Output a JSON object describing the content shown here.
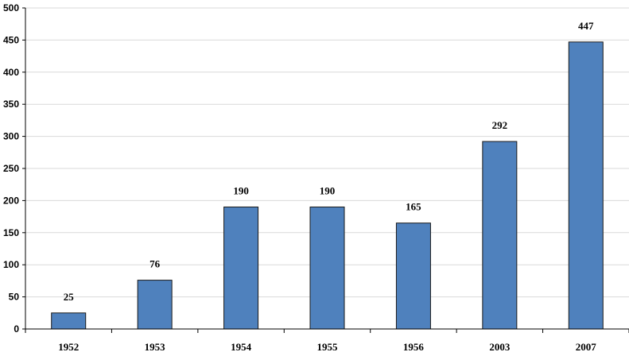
{
  "chart_data": {
    "type": "bar",
    "categories": [
      "1952",
      "1953",
      "1954",
      "1955",
      "1956",
      "2003",
      "2007"
    ],
    "values": [
      25,
      76,
      190,
      190,
      165,
      292,
      447
    ],
    "data_labels": [
      "25",
      "76",
      "190",
      "190",
      "165",
      "292",
      "447"
    ],
    "title": "",
    "xlabel": "",
    "ylabel": "",
    "ylim": [
      0,
      500
    ],
    "yticks": [
      "0",
      "50",
      "100",
      "150",
      "200",
      "250",
      "300",
      "350",
      "400",
      "450",
      "500"
    ],
    "grid": "horizontal",
    "legend": "none",
    "colors": {
      "bar_fill": "#4f81bd",
      "bar_stroke": "#1a1a1a",
      "gridline": "#d9d9d9",
      "axis": "#000000"
    }
  }
}
